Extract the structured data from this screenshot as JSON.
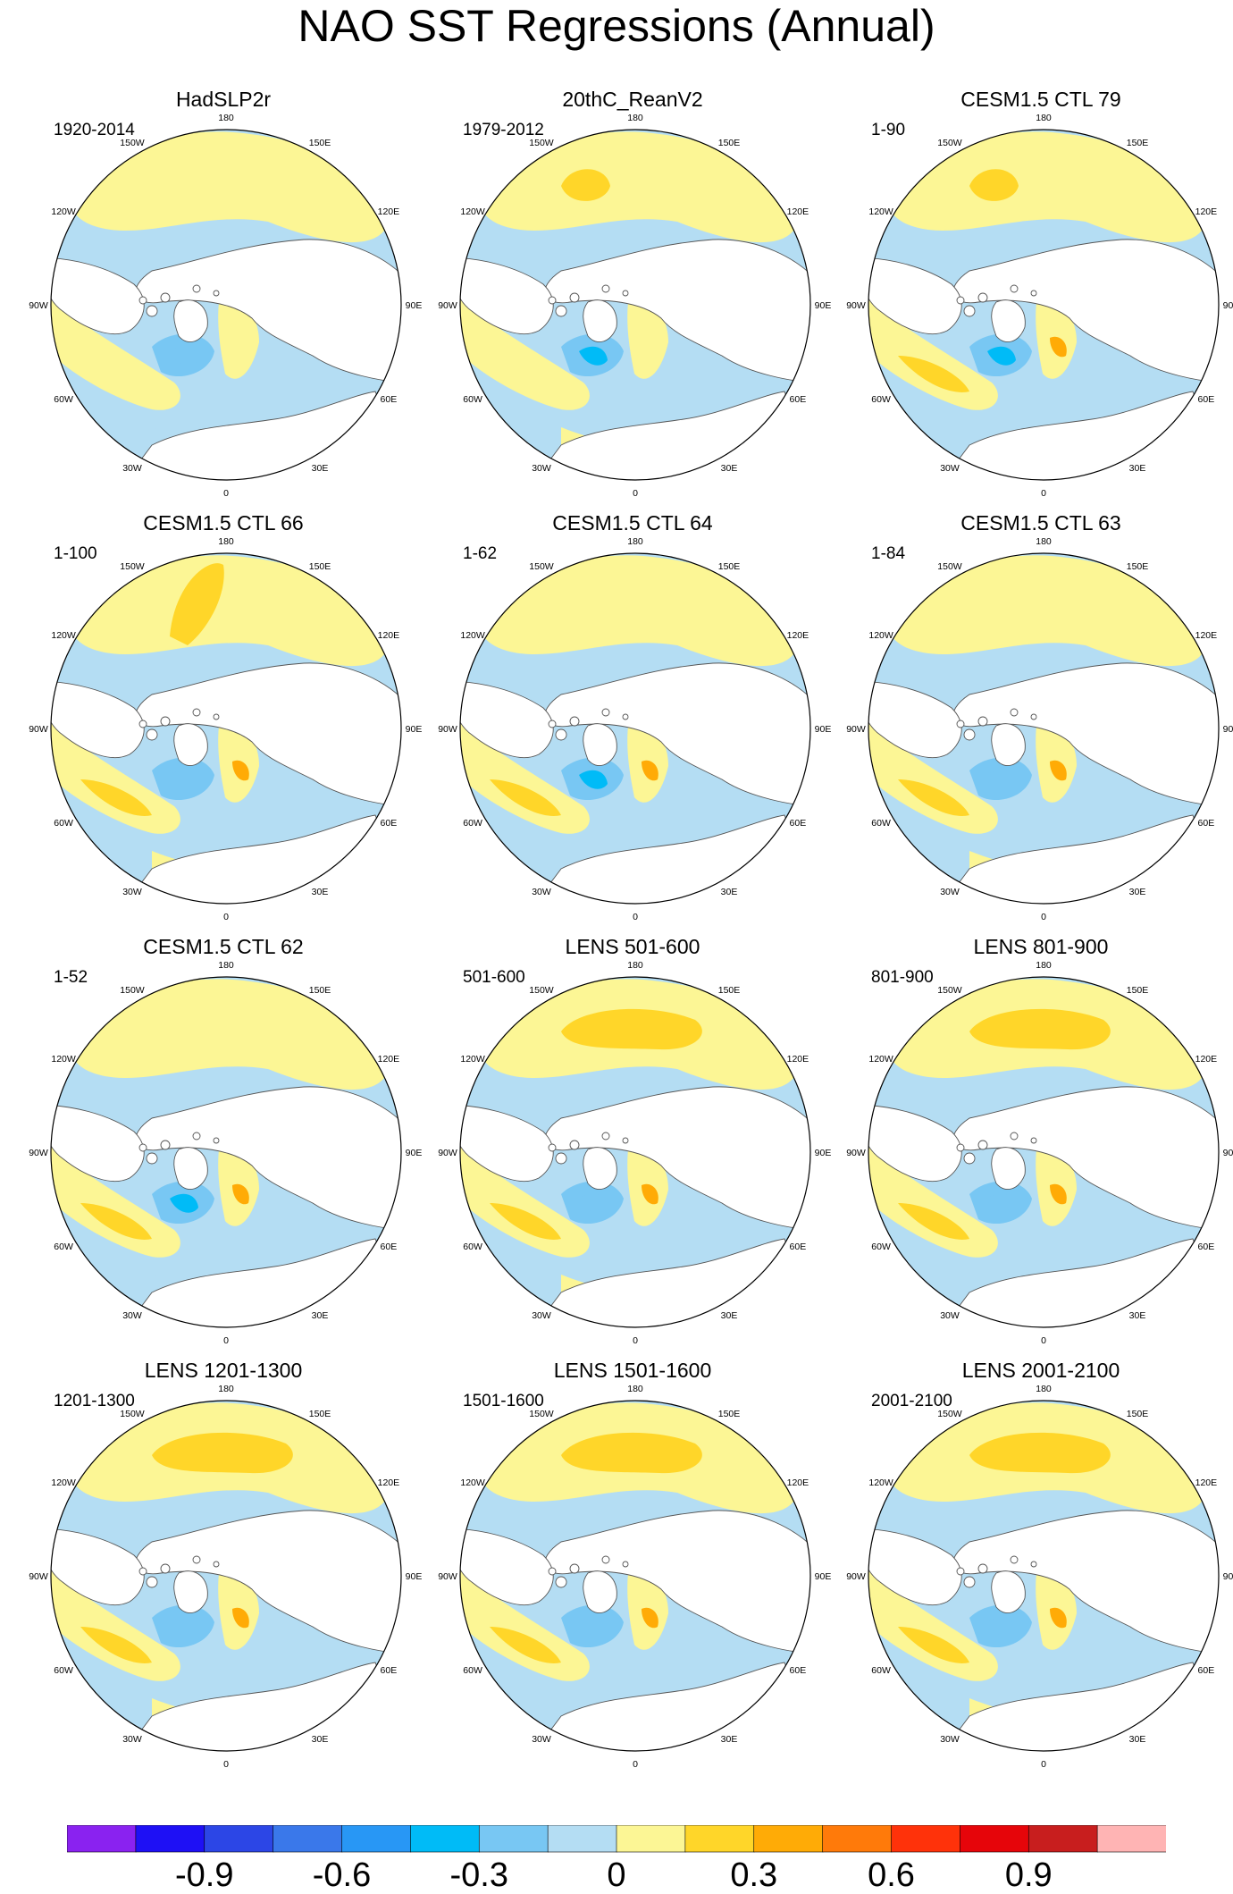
{
  "title": "NAO SST Regressions (Annual)",
  "panels": [
    {
      "title": "HadSLP2r",
      "period": "1920-2014",
      "pattern": "obs"
    },
    {
      "title": "20thC_ReanV2",
      "period": "1979-2012",
      "pattern": "obs"
    },
    {
      "title": "CESM1.5 CTL 79",
      "period": "1-90",
      "pattern": "model"
    },
    {
      "title": "CESM1.5 CTL 66",
      "period": "1-100",
      "pattern": "model"
    },
    {
      "title": "CESM1.5 CTL 64",
      "period": "1-62",
      "pattern": "model"
    },
    {
      "title": "CESM1.5 CTL 63",
      "period": "1-84",
      "pattern": "model"
    },
    {
      "title": "CESM1.5 CTL 62",
      "period": "1-52",
      "pattern": "model"
    },
    {
      "title": "LENS 501-600",
      "period": "501-600",
      "pattern": "model"
    },
    {
      "title": "LENS 801-900",
      "period": "801-900",
      "pattern": "model"
    },
    {
      "title": "LENS 1201-1300",
      "period": "1201-1300",
      "pattern": "model"
    },
    {
      "title": "LENS 1501-1600",
      "period": "1501-1600",
      "pattern": "model"
    },
    {
      "title": "LENS 2001-2100",
      "period": "2001-2100",
      "pattern": "model"
    }
  ],
  "longitude_labels": [
    "180",
    "150E",
    "120E",
    "90E",
    "60E",
    "30E",
    "0",
    "30W",
    "60W",
    "90W",
    "120W",
    "150W"
  ],
  "colorbar": {
    "colors": [
      "#8a22f0",
      "#1e10f5",
      "#2c46e6",
      "#3a78ea",
      "#2897f5",
      "#00bbf7",
      "#78c7f3",
      "#b4ddf3",
      "#fcf695",
      "#ffd629",
      "#ffab06",
      "#ff7a0a",
      "#ff320a",
      "#e6050a",
      "#c81e1e",
      "#ffb4b4"
    ],
    "tick_labels": [
      "-0.9",
      "-0.6",
      "-0.3",
      "0",
      "0.3",
      "0.6",
      "0.9"
    ],
    "tick_values": [
      -0.9,
      -0.6,
      -0.3,
      0,
      0.3,
      0.6,
      0.9
    ],
    "interval": 0.15
  }
}
